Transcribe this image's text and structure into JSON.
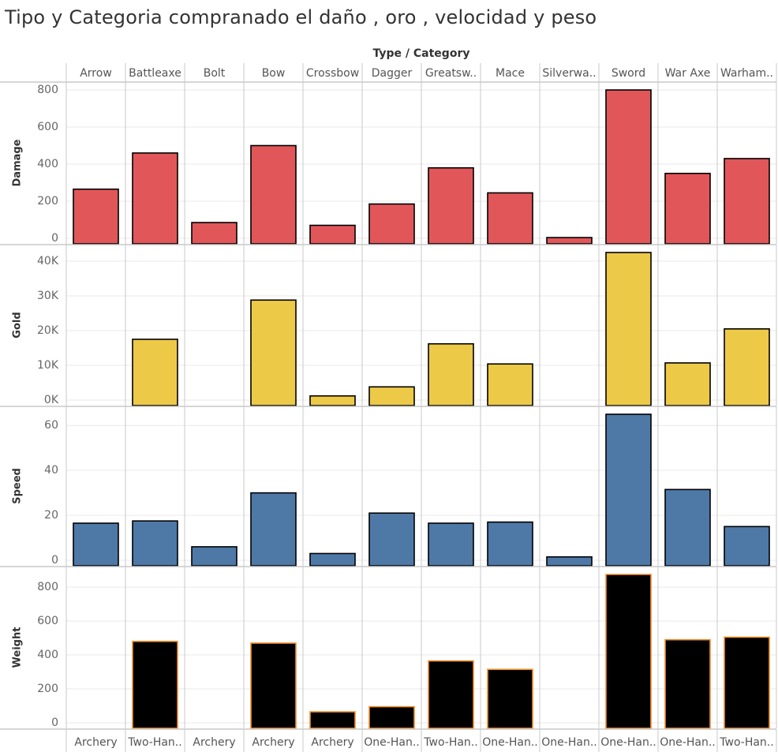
{
  "title": "Tipo y Categoria compranado el daño , oro , velocidad y peso",
  "header_title": "Type  /  Category",
  "colors": {
    "damage": "#E15759",
    "gold": "#EDC948",
    "speed": "#4E79A7",
    "weight": "#000000",
    "weight_outline": "#F28E2B",
    "bar_outline": "#000000",
    "grid": "#e9e9e9",
    "divider": "#c8c8c8"
  },
  "chart_data": {
    "type": "bar",
    "title": "Tipo y Categoria compranado el daño , oro , velocidad y peso",
    "categories": [
      "Arrow",
      "Battleaxe",
      "Bolt",
      "Bow",
      "Crossbow",
      "Dagger",
      "Greatsw..",
      "Mace",
      "Silverwa..",
      "Sword",
      "War Axe",
      "Warham.."
    ],
    "category_labels": [
      "Archery",
      "Two-Han..",
      "Archery",
      "Archery",
      "Archery",
      "One-Han..",
      "Two-Han..",
      "One-Han..",
      "One-Han..",
      "One-Han..",
      "One-Han..",
      "Two-Han.."
    ],
    "grid": true,
    "series": [
      {
        "name": "Damage",
        "values": [
          265,
          460,
          85,
          500,
          70,
          185,
          380,
          245,
          4,
          800,
          350,
          430
        ],
        "ylim": [
          0,
          800
        ],
        "ticks": [
          0,
          200,
          400,
          600,
          800
        ],
        "tick_labels": [
          "0",
          "200",
          "400",
          "600",
          "800"
        ]
      },
      {
        "name": "Gold",
        "values": [
          0,
          17500,
          0,
          28800,
          1200,
          3800,
          16200,
          10400,
          0,
          42500,
          10700,
          20500
        ],
        "ylim": [
          0,
          42500
        ],
        "ticks": [
          0,
          10000,
          20000,
          30000,
          40000
        ],
        "tick_labels": [
          "0K",
          "10K",
          "20K",
          "30K",
          "40K"
        ]
      },
      {
        "name": "Speed",
        "values": [
          16.5,
          17.5,
          6,
          30,
          3,
          21,
          16.5,
          17,
          1.5,
          65,
          31.5,
          15
        ],
        "ylim": [
          0,
          65
        ],
        "ticks": [
          0,
          20,
          40,
          60
        ],
        "tick_labels": [
          "0",
          "20",
          "40",
          "60"
        ]
      },
      {
        "name": "Weight",
        "values": [
          0,
          480,
          0,
          470,
          65,
          95,
          365,
          315,
          0,
          875,
          490,
          505
        ],
        "ylim": [
          0,
          875
        ],
        "ticks": [
          0,
          200,
          400,
          600,
          800
        ],
        "tick_labels": [
          "0",
          "200",
          "400",
          "600",
          "800"
        ]
      }
    ]
  }
}
